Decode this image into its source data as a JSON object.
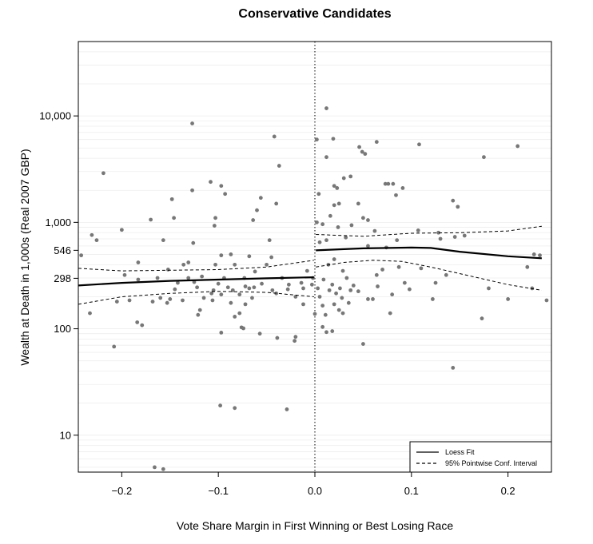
{
  "chart_data": {
    "type": "scatter",
    "title": "Conservative Candidates",
    "xlabel": "Vote Share Margin in First Winning or Best Losing Race",
    "ylabel": "Wealth at Death in 1,000s (Real 2007 GBP)",
    "xlim": [
      -0.245,
      0.245
    ],
    "ylim": [
      4.5,
      50000
    ],
    "yscale": "log",
    "x_ticks": [
      -0.2,
      -0.1,
      0.0,
      0.1,
      0.2
    ],
    "x_tick_labels": [
      "−0.2",
      "−0.1",
      "0.0",
      "0.1",
      "0.2"
    ],
    "y_ticks": [
      10,
      100,
      298,
      546,
      1000,
      10000
    ],
    "y_tick_labels": [
      "10",
      "100",
      "298",
      "546",
      "1,000",
      "10,000"
    ],
    "grid": "horizontal minor log gridlines",
    "cutoff_line_x": 0,
    "legend": {
      "position": "bottom-right",
      "entries": [
        {
          "label": "Loess Fit",
          "style": "solid"
        },
        {
          "label": "95% Pointwise Conf. Interval",
          "style": "dashed"
        }
      ]
    },
    "colors": {
      "points": "#777777",
      "lines": "#000000",
      "grid": "#eeeeee"
    },
    "loess_fit": {
      "left": {
        "x": [
          -0.245,
          -0.2,
          -0.15,
          -0.1,
          -0.05,
          -0.001
        ],
        "y": [
          255,
          270,
          282,
          290,
          298,
          305
        ]
      },
      "right": {
        "x": [
          0.001,
          0.05,
          0.1,
          0.12,
          0.15,
          0.2,
          0.235
        ],
        "y": [
          546,
          570,
          580,
          575,
          530,
          480,
          460
        ]
      }
    },
    "ci_upper": {
      "left": {
        "x": [
          -0.245,
          -0.2,
          -0.15,
          -0.1,
          -0.05,
          -0.001
        ],
        "y": [
          370,
          350,
          355,
          360,
          380,
          440
        ]
      },
      "right": {
        "x": [
          0.001,
          0.05,
          0.1,
          0.15,
          0.2,
          0.235
        ],
        "y": [
          770,
          740,
          790,
          800,
          830,
          920
        ]
      }
    },
    "ci_lower": {
      "left": {
        "x": [
          -0.245,
          -0.2,
          -0.15,
          -0.1,
          -0.05,
          -0.001
        ],
        "y": [
          170,
          200,
          215,
          225,
          220,
          200
        ]
      },
      "right": {
        "x": [
          0.001,
          0.03,
          0.06,
          0.09,
          0.12,
          0.15,
          0.2,
          0.235
        ],
        "y": [
          380,
          420,
          440,
          430,
          380,
          330,
          260,
          230
        ]
      }
    },
    "points": [
      {
        "x": 0.012,
        "y": 11800
      },
      {
        "x": -0.127,
        "y": 8500
      },
      {
        "x": -0.042,
        "y": 6400
      },
      {
        "x": 0.002,
        "y": 6000
      },
      {
        "x": 0.019,
        "y": 6100
      },
      {
        "x": 0.046,
        "y": 5100
      },
      {
        "x": 0.064,
        "y": 5700
      },
      {
        "x": 0.108,
        "y": 5400
      },
      {
        "x": 0.21,
        "y": 5200
      },
      {
        "x": 0.049,
        "y": 4600
      },
      {
        "x": 0.052,
        "y": 4400
      },
      {
        "x": 0.175,
        "y": 4100
      },
      {
        "x": 0.012,
        "y": 4100
      },
      {
        "x": -0.037,
        "y": 3400
      },
      {
        "x": -0.219,
        "y": 2900
      },
      {
        "x": 0.03,
        "y": 2600
      },
      {
        "x": -0.108,
        "y": 2400
      },
      {
        "x": -0.127,
        "y": 2000
      },
      {
        "x": -0.097,
        "y": 2200
      },
      {
        "x": 0.02,
        "y": 2200
      },
      {
        "x": 0.023,
        "y": 2100
      },
      {
        "x": 0.037,
        "y": 2700
      },
      {
        "x": 0.073,
        "y": 2300
      },
      {
        "x": 0.076,
        "y": 2300
      },
      {
        "x": 0.081,
        "y": 2300
      },
      {
        "x": 0.091,
        "y": 2100
      },
      {
        "x": -0.093,
        "y": 1850
      },
      {
        "x": -0.148,
        "y": 1650
      },
      {
        "x": -0.056,
        "y": 1700
      },
      {
        "x": 0.004,
        "y": 1850
      },
      {
        "x": 0.084,
        "y": 1800
      },
      {
        "x": 0.143,
        "y": 1600
      },
      {
        "x": -0.04,
        "y": 1500
      },
      {
        "x": 0.02,
        "y": 1450
      },
      {
        "x": 0.025,
        "y": 1500
      },
      {
        "x": 0.045,
        "y": 1500
      },
      {
        "x": -0.06,
        "y": 1300
      },
      {
        "x": 0.148,
        "y": 1400
      },
      {
        "x": -0.146,
        "y": 1100
      },
      {
        "x": -0.103,
        "y": 1100
      },
      {
        "x": -0.17,
        "y": 1060
      },
      {
        "x": -0.064,
        "y": 1050
      },
      {
        "x": 0.016,
        "y": 1150
      },
      {
        "x": 0.05,
        "y": 1100
      },
      {
        "x": 0.055,
        "y": 1050
      },
      {
        "x": -0.104,
        "y": 930
      },
      {
        "x": 0.002,
        "y": 1000
      },
      {
        "x": 0.008,
        "y": 960
      },
      {
        "x": 0.024,
        "y": 900
      },
      {
        "x": 0.038,
        "y": 940
      },
      {
        "x": 0.062,
        "y": 830
      },
      {
        "x": 0.107,
        "y": 840
      },
      {
        "x": -0.2,
        "y": 850
      },
      {
        "x": -0.231,
        "y": 760
      },
      {
        "x": -0.226,
        "y": 680
      },
      {
        "x": -0.157,
        "y": 680
      },
      {
        "x": -0.047,
        "y": 680
      },
      {
        "x": 0.13,
        "y": 700
      },
      {
        "x": 0.145,
        "y": 730
      },
      {
        "x": 0.155,
        "y": 750
      },
      {
        "x": 0.128,
        "y": 800
      },
      {
        "x": -0.126,
        "y": 640
      },
      {
        "x": 0.032,
        "y": 720
      },
      {
        "x": 0.012,
        "y": 680
      },
      {
        "x": 0.085,
        "y": 680
      },
      {
        "x": -0.242,
        "y": 490
      },
      {
        "x": -0.097,
        "y": 490
      },
      {
        "x": -0.087,
        "y": 500
      },
      {
        "x": 0.005,
        "y": 650
      },
      {
        "x": -0.068,
        "y": 480
      },
      {
        "x": -0.045,
        "y": 470
      },
      {
        "x": 0.055,
        "y": 600
      },
      {
        "x": 0.074,
        "y": 580
      },
      {
        "x": -0.183,
        "y": 420
      },
      {
        "x": -0.136,
        "y": 400
      },
      {
        "x": -0.131,
        "y": 420
      },
      {
        "x": -0.103,
        "y": 400
      },
      {
        "x": -0.083,
        "y": 400
      },
      {
        "x": -0.05,
        "y": 400
      },
      {
        "x": 0.02,
        "y": 450
      },
      {
        "x": 0.014,
        "y": 400
      },
      {
        "x": 0.029,
        "y": 350
      },
      {
        "x": 0.07,
        "y": 360
      },
      {
        "x": 0.087,
        "y": 380
      },
      {
        "x": 0.11,
        "y": 370
      },
      {
        "x": 0.22,
        "y": 380
      },
      {
        "x": 0.227,
        "y": 500
      },
      {
        "x": 0.233,
        "y": 490
      },
      {
        "x": -0.008,
        "y": 350
      },
      {
        "x": -0.062,
        "y": 345
      },
      {
        "x": -0.152,
        "y": 360
      },
      {
        "x": -0.197,
        "y": 320
      },
      {
        "x": -0.183,
        "y": 290
      },
      {
        "x": -0.163,
        "y": 300
      },
      {
        "x": -0.131,
        "y": 300
      },
      {
        "x": -0.117,
        "y": 310
      },
      {
        "x": -0.094,
        "y": 300
      },
      {
        "x": -0.073,
        "y": 300
      },
      {
        "x": -0.034,
        "y": 300
      },
      {
        "x": -0.002,
        "y": 300
      },
      {
        "x": 0.009,
        "y": 290
      },
      {
        "x": 0.033,
        "y": 300
      },
      {
        "x": 0.064,
        "y": 320
      },
      {
        "x": 0.136,
        "y": 320
      },
      {
        "x": -0.142,
        "y": 270
      },
      {
        "x": -0.125,
        "y": 275
      },
      {
        "x": -0.1,
        "y": 265
      },
      {
        "x": -0.072,
        "y": 250
      },
      {
        "x": -0.055,
        "y": 265
      },
      {
        "x": -0.027,
        "y": 260
      },
      {
        "x": -0.014,
        "y": 270
      },
      {
        "x": -0.003,
        "y": 260
      },
      {
        "x": 0.018,
        "y": 260
      },
      {
        "x": 0.04,
        "y": 255
      },
      {
        "x": 0.065,
        "y": 250
      },
      {
        "x": 0.093,
        "y": 270
      },
      {
        "x": 0.125,
        "y": 270
      },
      {
        "x": 0.18,
        "y": 240
      },
      {
        "x": -0.145,
        "y": 235
      },
      {
        "x": -0.122,
        "y": 245
      },
      {
        "x": -0.105,
        "y": 230
      },
      {
        "x": -0.09,
        "y": 245
      },
      {
        "x": -0.085,
        "y": 230
      },
      {
        "x": -0.068,
        "y": 240
      },
      {
        "x": -0.063,
        "y": 245
      },
      {
        "x": -0.044,
        "y": 230
      },
      {
        "x": -0.028,
        "y": 235
      },
      {
        "x": -0.012,
        "y": 240
      },
      {
        "x": 0.003,
        "y": 240
      },
      {
        "x": 0.015,
        "y": 230
      },
      {
        "x": 0.026,
        "y": 240
      },
      {
        "x": 0.037,
        "y": 230
      },
      {
        "x": 0.045,
        "y": 225
      },
      {
        "x": 0.098,
        "y": 235
      },
      {
        "x": -0.107,
        "y": 215
      },
      {
        "x": -0.097,
        "y": 210
      },
      {
        "x": -0.078,
        "y": 210
      },
      {
        "x": -0.04,
        "y": 215
      },
      {
        "x": 0.022,
        "y": 215
      },
      {
        "x": 0.08,
        "y": 210
      },
      {
        "x": -0.16,
        "y": 195
      },
      {
        "x": -0.15,
        "y": 190
      },
      {
        "x": -0.137,
        "y": 185
      },
      {
        "x": -0.115,
        "y": 195
      },
      {
        "x": -0.106,
        "y": 185
      },
      {
        "x": -0.065,
        "y": 195
      },
      {
        "x": -0.02,
        "y": 200
      },
      {
        "x": 0.005,
        "y": 200
      },
      {
        "x": 0.028,
        "y": 195
      },
      {
        "x": 0.055,
        "y": 190
      },
      {
        "x": 0.06,
        "y": 190
      },
      {
        "x": 0.122,
        "y": 190
      },
      {
        "x": 0.2,
        "y": 190
      },
      {
        "x": 0.225,
        "y": 240
      },
      {
        "x": 0.24,
        "y": 185
      },
      {
        "x": -0.205,
        "y": 180
      },
      {
        "x": -0.192,
        "y": 185
      },
      {
        "x": -0.168,
        "y": 180
      },
      {
        "x": -0.153,
        "y": 175
      },
      {
        "x": -0.087,
        "y": 175
      },
      {
        "x": -0.072,
        "y": 170
      },
      {
        "x": -0.012,
        "y": 170
      },
      {
        "x": 0.008,
        "y": 165
      },
      {
        "x": 0.02,
        "y": 170
      },
      {
        "x": 0.035,
        "y": 175
      },
      {
        "x": -0.119,
        "y": 150
      },
      {
        "x": -0.078,
        "y": 140
      },
      {
        "x": 0.025,
        "y": 150
      },
      {
        "x": -0.233,
        "y": 140
      },
      {
        "x": -0.121,
        "y": 135
      },
      {
        "x": -0.083,
        "y": 130
      },
      {
        "x": 0.0,
        "y": 138
      },
      {
        "x": 0.011,
        "y": 135
      },
      {
        "x": 0.029,
        "y": 140
      },
      {
        "x": 0.078,
        "y": 140
      },
      {
        "x": 0.173,
        "y": 125
      },
      {
        "x": -0.184,
        "y": 115
      },
      {
        "x": -0.179,
        "y": 108
      },
      {
        "x": -0.076,
        "y": 103
      },
      {
        "x": -0.074,
        "y": 101
      },
      {
        "x": 0.008,
        "y": 104
      },
      {
        "x": -0.097,
        "y": 92
      },
      {
        "x": -0.057,
        "y": 90
      },
      {
        "x": 0.012,
        "y": 93
      },
      {
        "x": 0.018,
        "y": 95
      },
      {
        "x": -0.039,
        "y": 82
      },
      {
        "x": -0.02,
        "y": 84
      },
      {
        "x": -0.021,
        "y": 77
      },
      {
        "x": 0.05,
        "y": 72
      },
      {
        "x": -0.208,
        "y": 68
      },
      {
        "x": 0.143,
        "y": 43
      },
      {
        "x": -0.098,
        "y": 19
      },
      {
        "x": -0.083,
        "y": 18
      },
      {
        "x": -0.029,
        "y": 17.5
      },
      {
        "x": -0.166,
        "y": 5
      },
      {
        "x": -0.157,
        "y": 4.8
      }
    ]
  }
}
